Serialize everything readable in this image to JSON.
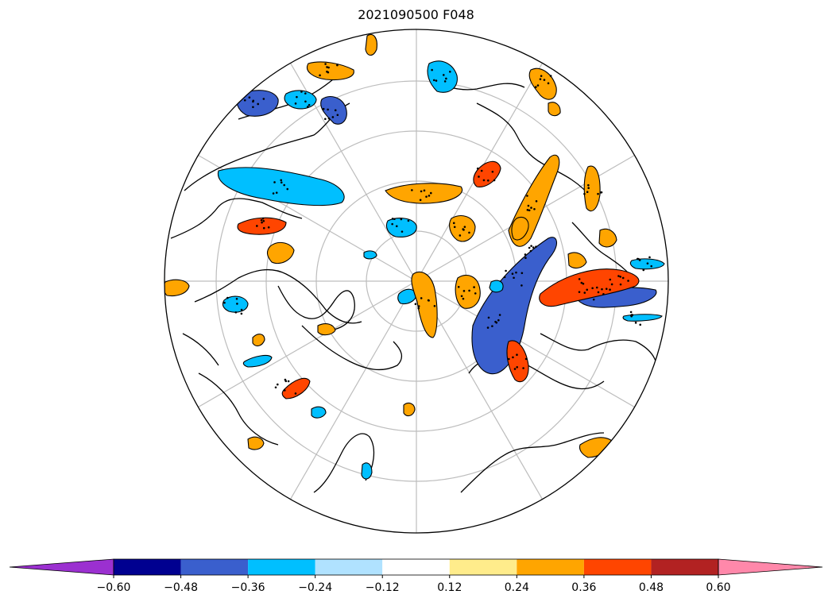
{
  "title": "2021090500 F048",
  "colorbar": {
    "tick_labels": [
      "−0.60",
      "−0.48",
      "−0.36",
      "−0.24",
      "−0.12",
      "0.12",
      "0.24",
      "0.36",
      "0.48",
      "0.60"
    ],
    "under_color": "#9b30d0",
    "over_color": "#ff88aa",
    "colors": [
      "#000090",
      "#3a5fcd",
      "#00bfff",
      "#b0e2ff",
      "#ffffff",
      "#ffec8b",
      "#ffa500",
      "#ff4500",
      "#b22222"
    ]
  },
  "map": {
    "projection": "north-polar-stereographic",
    "land_outline_color": "#000000",
    "graticule_color": "#bdbdbd",
    "stipple": true
  }
}
